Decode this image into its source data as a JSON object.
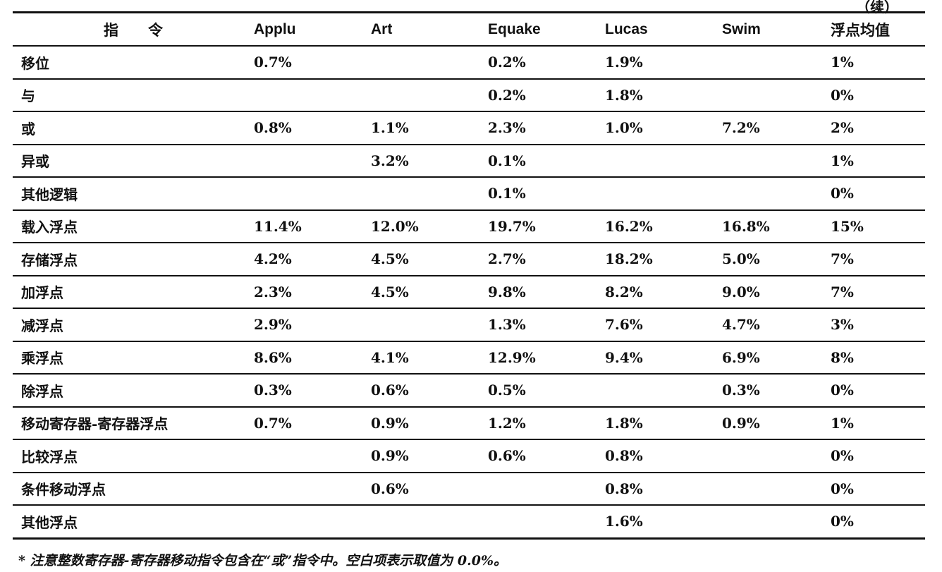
{
  "continued_label": "（续）",
  "columns": [
    "指　　令",
    "Applu",
    "Art",
    "Equake",
    "Lucas",
    "Swim",
    "浮点均值"
  ],
  "rows": [
    [
      "移位",
      "0.7%",
      "",
      "0.2%",
      "1.9%",
      "",
      "1%"
    ],
    [
      "与",
      "",
      "",
      "0.2%",
      "1.8%",
      "",
      "0%"
    ],
    [
      "或",
      "0.8%",
      "1.1%",
      "2.3%",
      "1.0%",
      "7.2%",
      "2%"
    ],
    [
      "异或",
      "",
      "3.2%",
      "0.1%",
      "",
      "",
      "1%"
    ],
    [
      "其他逻辑",
      "",
      "",
      "0.1%",
      "",
      "",
      "0%"
    ],
    [
      "载入浮点",
      "11.4%",
      "12.0%",
      "19.7%",
      "16.2%",
      "16.8%",
      "15%"
    ],
    [
      "存储浮点",
      "4.2%",
      "4.5%",
      "2.7%",
      "18.2%",
      "5.0%",
      "7%"
    ],
    [
      "加浮点",
      "2.3%",
      "4.5%",
      "9.8%",
      "8.2%",
      "9.0%",
      "7%"
    ],
    [
      "减浮点",
      "2.9%",
      "",
      "1.3%",
      "7.6%",
      "4.7%",
      "3%"
    ],
    [
      "乘浮点",
      "8.6%",
      "4.1%",
      "12.9%",
      "9.4%",
      "6.9%",
      "8%"
    ],
    [
      "除浮点",
      "0.3%",
      "0.6%",
      "0.5%",
      "",
      "0.3%",
      "0%"
    ],
    [
      "移动寄存器-寄存器浮点",
      "0.7%",
      "0.9%",
      "1.2%",
      "1.8%",
      "0.9%",
      "1%"
    ],
    [
      "比较浮点",
      "",
      "0.9%",
      "0.6%",
      "0.8%",
      "",
      "0%"
    ],
    [
      "条件移动浮点",
      "",
      "0.6%",
      "",
      "0.8%",
      "",
      "0%"
    ],
    [
      "其他浮点",
      "",
      "",
      "",
      "1.6%",
      "",
      "0%"
    ]
  ],
  "footnote": "* 注意整数寄存器-寄存器移动指令包含在“或”指令中。空白项表示取值为 0.0%。"
}
